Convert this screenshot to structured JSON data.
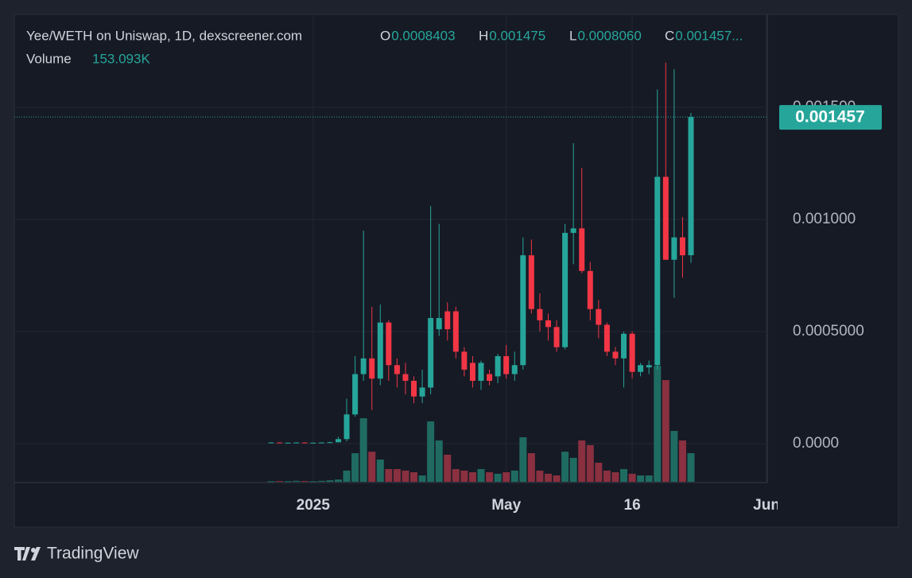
{
  "chart_data": {
    "type": "candlestick",
    "header": {
      "symbol": "Yee/WETH on Uniswap, 1D, dexscreener.com",
      "open_prefix": "O",
      "high_prefix": "H",
      "low_prefix": "L",
      "close_prefix": "C",
      "open": "0.0008403",
      "high": "0.001475",
      "low": "0.0008060",
      "close": "0.001457...",
      "volume_title": "Volume",
      "volume": "153.093K"
    },
    "price_label": "0.001457",
    "brand": "TradingView",
    "categories": [
      null,
      null,
      null,
      null,
      null,
      "2025",
      null,
      null,
      null,
      null,
      null,
      null,
      null,
      null,
      null,
      null,
      null,
      null,
      null,
      null,
      null,
      null,
      null,
      null,
      null,
      null,
      null,
      null,
      "May",
      null,
      null,
      null,
      null,
      null,
      null,
      null,
      null,
      null,
      null,
      null,
      null,
      null,
      null,
      "16",
      null,
      null,
      null,
      null,
      null,
      null,
      null,
      null,
      null,
      null,
      null,
      null,
      null,
      null,
      null,
      "Jun"
    ],
    "open": [
      4e-06,
      5e-06,
      4e-06,
      4e-06,
      5e-06,
      4e-06,
      4e-06,
      5e-06,
      6e-06,
      2e-05,
      0.00013,
      0.00031,
      0.00038,
      0.00029,
      0.00054,
      0.00035,
      0.00031,
      0.00028,
      0.00021,
      0.00025,
      0.00051,
      0.00059,
      0.00059,
      0.00041,
      0.00036,
      0.00028,
      0.00031,
      0.0003,
      0.00039,
      0.00031,
      0.00035,
      0.00084,
      0.0006,
      0.00055,
      0.00052,
      0.00043,
      0.00094,
      0.00096,
      0.00077,
      0.0006,
      0.00053,
      0.00041,
      0.00038,
      0.00049,
      0.00032,
      0.00034,
      0.00035,
      0.00119,
      0.00082,
      0.00092,
      0.0008403,
      null,
      null,
      null,
      null,
      null,
      null,
      null,
      null,
      null
    ],
    "high": [
      6e-06,
      6e-06,
      5e-06,
      6e-06,
      6e-06,
      5e-06,
      6e-06,
      8e-06,
      3e-05,
      0.0002,
      0.00039,
      0.00095,
      0.00061,
      0.00062,
      0.00055,
      0.00038,
      0.00036,
      0.0003,
      0.00033,
      0.00106,
      0.00098,
      0.00063,
      0.00061,
      0.00043,
      0.00039,
      0.00037,
      0.00033,
      0.0004,
      0.00044,
      0.00041,
      0.00092,
      0.00091,
      0.00067,
      0.00058,
      0.00055,
      0.00098,
      0.00134,
      0.00123,
      0.00081,
      0.00064,
      0.00054,
      0.00043,
      0.0005,
      0.0005,
      0.00036,
      0.00037,
      0.00158,
      0.0017,
      0.00167,
      0.00101,
      0.001475,
      null,
      null,
      null,
      null,
      null,
      null,
      null,
      null,
      null
    ],
    "low": [
      3e-06,
      3e-06,
      3e-06,
      4e-06,
      3e-06,
      3e-06,
      4e-06,
      5e-06,
      5e-06,
      1e-05,
      0.00012,
      0.00028,
      0.00015,
      0.00026,
      0.00028,
      0.00025,
      0.00022,
      0.00018,
      0.00018,
      0.00022,
      0.00048,
      0.00046,
      0.00038,
      0.0003,
      0.00025,
      0.00024,
      0.00026,
      0.00027,
      0.00029,
      0.00028,
      0.00033,
      0.00058,
      0.0005,
      0.00046,
      0.00041,
      0.00042,
      0.0008,
      0.00076,
      0.00055,
      0.00047,
      0.00039,
      0.00035,
      0.00025,
      0.00029,
      0.0003,
      0.00031,
      0.00033,
      0.00082,
      0.00065,
      0.00074,
      0.000806,
      null,
      null,
      null,
      null,
      null,
      null,
      null,
      null,
      null
    ],
    "close": [
      5e-06,
      4e-06,
      4e-06,
      5e-06,
      4e-06,
      4e-06,
      5e-06,
      6e-06,
      2e-05,
      0.00013,
      0.00031,
      0.00038,
      0.00029,
      0.00054,
      0.00035,
      0.00031,
      0.00028,
      0.00021,
      0.00025,
      0.00056,
      0.00056,
      0.00051,
      0.00041,
      0.00033,
      0.00028,
      0.00036,
      0.00028,
      0.00039,
      0.00031,
      0.00035,
      0.00084,
      0.0006,
      0.00055,
      0.00052,
      0.00043,
      0.00094,
      0.00096,
      0.00077,
      0.0006,
      0.00053,
      0.00041,
      0.00038,
      0.00049,
      0.00032,
      0.00035,
      0.00035,
      0.00119,
      0.00082,
      0.00092,
      0.00084,
      0.001457,
      null,
      null,
      null,
      null,
      null,
      null,
      null,
      null,
      null
    ],
    "volume": [
      3000,
      4000,
      3000,
      5000,
      4000,
      3000,
      5000,
      8000,
      12000,
      60000,
      153000,
      340000,
      161000,
      119000,
      68000,
      68000,
      60000,
      51000,
      34000,
      323000,
      221000,
      145000,
      68000,
      60000,
      51000,
      68000,
      51000,
      43000,
      51000,
      60000,
      238000,
      153000,
      60000,
      43000,
      34000,
      161000,
      128000,
      221000,
      196000,
      102000,
      60000,
      51000,
      68000,
      43000,
      34000,
      34000,
      620000,
      544000,
      272000,
      221000,
      153093,
      null,
      null,
      null,
      null,
      null,
      null,
      null,
      null,
      null
    ],
    "ylim": [
      -0.000174,
      0.001915
    ],
    "yticks": [
      {
        "value": 0,
        "label": "0.0000"
      },
      {
        "value": 0.0005,
        "label": "0.0005000"
      },
      {
        "value": 0.001,
        "label": "0.001000"
      },
      {
        "value": 0.0015,
        "label": "0.001500"
      }
    ],
    "volume_lim": [
      0,
      2500000
    ],
    "up_color": "#26a69a",
    "down_color": "#f23645",
    "volume_up_color": "#1f6b62",
    "volume_down_color": "#8a3040",
    "grid": true
  }
}
